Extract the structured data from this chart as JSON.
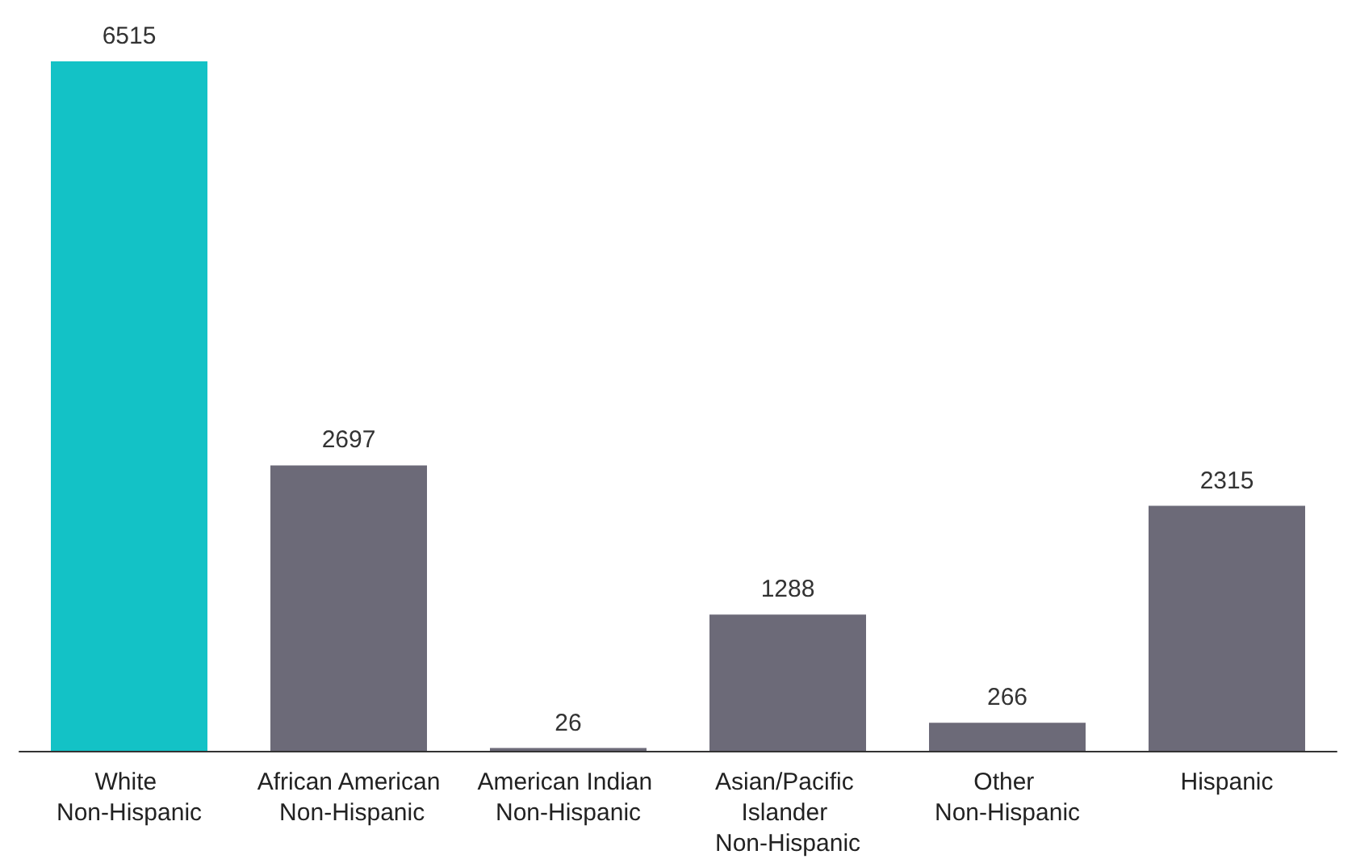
{
  "chart_data": {
    "type": "bar",
    "categories": [
      "White Non-Hispanic",
      "African American Non-Hispanic",
      "American Indian Non-Hispanic",
      "Asian/Pacific Islander Non-Hispanic",
      "Other Non-Hispanic",
      "Hispanic"
    ],
    "values": [
      6515,
      2697,
      26,
      1288,
      266,
      2315
    ],
    "colors": [
      "#13c2c6",
      "#6c6a78",
      "#6c6a78",
      "#6c6a78",
      "#6c6a78",
      "#6c6a78"
    ],
    "data_labels": true
  }
}
